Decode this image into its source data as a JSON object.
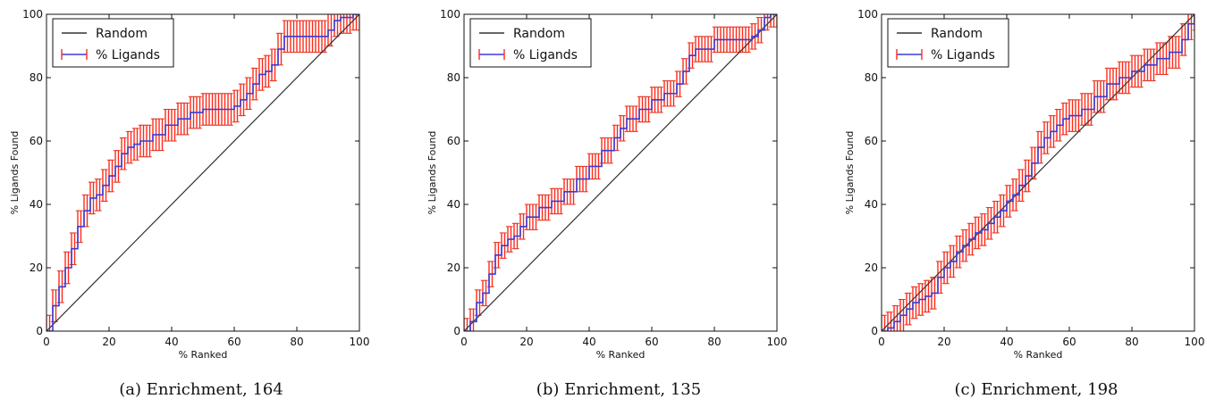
{
  "chart_data": [
    {
      "type": "line",
      "caption": "(a) Enrichment, 164",
      "xlabel": "% Ranked",
      "ylabel": "% Ligands Found",
      "xlim": [
        0,
        100
      ],
      "ylim": [
        0,
        100
      ],
      "xticks": [
        "0",
        "20",
        "40",
        "60",
        "80",
        "100"
      ],
      "yticks": [
        "0",
        "20",
        "40",
        "60",
        "80",
        "100"
      ],
      "legend_position": "top-left",
      "series": [
        {
          "name": "Random",
          "color": "#333333",
          "x": [
            0,
            100
          ],
          "y": [
            0,
            100
          ]
        },
        {
          "name": "% Ligands",
          "color": "#3b3bd6",
          "error_color": "#ff2a1a",
          "error_band": 5,
          "x": [
            0,
            2,
            4,
            6,
            8,
            10,
            12,
            14,
            16,
            18,
            20,
            22,
            24,
            26,
            28,
            30,
            34,
            38,
            42,
            46,
            50,
            54,
            58,
            60,
            62,
            64,
            66,
            68,
            70,
            72,
            74,
            76,
            80,
            84,
            86,
            88,
            90,
            92,
            94,
            96,
            98,
            100
          ],
          "y": [
            0,
            8,
            14,
            20,
            26,
            33,
            38,
            42,
            43,
            46,
            49,
            52,
            56,
            58,
            59,
            60,
            62,
            65,
            67,
            69,
            70,
            70,
            70,
            71,
            73,
            75,
            78,
            81,
            82,
            84,
            89,
            93,
            93,
            93,
            93,
            93,
            95,
            98,
            99,
            99,
            100,
            100
          ]
        }
      ]
    },
    {
      "type": "line",
      "caption": "(b) Enrichment, 135",
      "xlabel": "% Ranked",
      "ylabel": "% Ligands Found",
      "xlim": [
        0,
        100
      ],
      "ylim": [
        0,
        100
      ],
      "xticks": [
        "0",
        "20",
        "40",
        "60",
        "80",
        "100"
      ],
      "yticks": [
        "0",
        "20",
        "40",
        "60",
        "80",
        "100"
      ],
      "legend_position": "top-left",
      "series": [
        {
          "name": "Random",
          "color": "#333333",
          "x": [
            0,
            100
          ],
          "y": [
            0,
            100
          ]
        },
        {
          "name": "% Ligands",
          "color": "#3b3bd6",
          "error_color": "#ff2a1a",
          "error_band": 4,
          "x": [
            0,
            2,
            4,
            6,
            8,
            10,
            12,
            14,
            16,
            18,
            20,
            24,
            28,
            32,
            36,
            40,
            44,
            48,
            50,
            52,
            56,
            60,
            64,
            68,
            70,
            72,
            74,
            76,
            80,
            84,
            88,
            90,
            92,
            94,
            96,
            98,
            100
          ],
          "y": [
            0,
            3,
            9,
            12,
            18,
            24,
            27,
            29,
            30,
            33,
            36,
            39,
            41,
            44,
            48,
            52,
            57,
            61,
            64,
            67,
            70,
            73,
            75,
            78,
            82,
            87,
            89,
            89,
            92,
            92,
            92,
            92,
            93,
            95,
            99,
            100,
            100
          ]
        }
      ]
    },
    {
      "type": "line",
      "caption": "(c) Enrichment, 198",
      "xlabel": "% Ranked",
      "ylabel": "% Ligands Found",
      "xlim": [
        0,
        100
      ],
      "ylim": [
        0,
        100
      ],
      "xticks": [
        "0",
        "20",
        "40",
        "60",
        "80",
        "100"
      ],
      "yticks": [
        "0",
        "20",
        "40",
        "60",
        "80",
        "100"
      ],
      "legend_position": "top-left",
      "series": [
        {
          "name": "Random",
          "color": "#333333",
          "x": [
            0,
            100
          ],
          "y": [
            0,
            100
          ]
        },
        {
          "name": "% Ligands",
          "color": "#3b3bd6",
          "error_color": "#ff2a1a",
          "error_band": 5,
          "x": [
            0,
            2,
            4,
            6,
            8,
            10,
            12,
            14,
            16,
            18,
            20,
            22,
            24,
            26,
            28,
            30,
            32,
            34,
            36,
            38,
            40,
            42,
            44,
            46,
            48,
            50,
            52,
            54,
            56,
            58,
            60,
            64,
            68,
            72,
            76,
            80,
            84,
            88,
            92,
            96,
            98,
            100
          ],
          "y": [
            0,
            1,
            3,
            5,
            7,
            9,
            10,
            11,
            12,
            17,
            20,
            22,
            25,
            27,
            29,
            31,
            32,
            34,
            36,
            38,
            41,
            43,
            46,
            49,
            53,
            58,
            61,
            63,
            65,
            67,
            68,
            70,
            74,
            78,
            80,
            82,
            84,
            86,
            88,
            92,
            97,
            100
          ]
        }
      ]
    }
  ]
}
